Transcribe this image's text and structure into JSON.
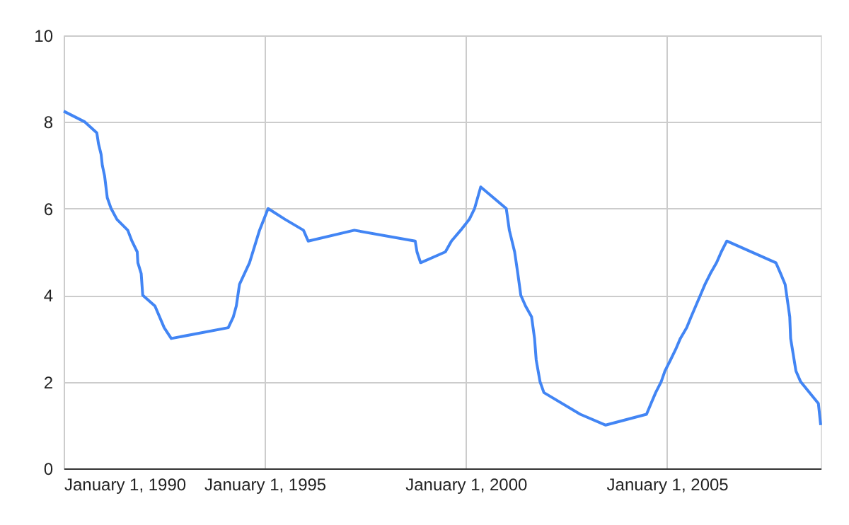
{
  "chart_data": {
    "type": "line",
    "x": [
      "1990-01-01",
      "1990-07-13",
      "1990-10-29",
      "1990-11-13",
      "1990-12-07",
      "1990-12-18",
      "1991-01-08",
      "1991-02-01",
      "1991-03-08",
      "1991-04-30",
      "1991-08-06",
      "1991-09-13",
      "1991-10-31",
      "1991-11-06",
      "1991-12-06",
      "1991-12-20",
      "1992-04-09",
      "1992-07-02",
      "1992-09-04",
      "1994-02-04",
      "1994-03-22",
      "1994-04-18",
      "1994-05-17",
      "1994-08-16",
      "1994-11-15",
      "1995-02-01",
      "1995-07-06",
      "1995-12-19",
      "1996-01-31",
      "1997-03-25",
      "1998-09-29",
      "1998-10-15",
      "1998-11-17",
      "1999-06-30",
      "1999-08-24",
      "1999-11-16",
      "2000-02-02",
      "2000-03-21",
      "2000-05-16",
      "2001-01-03",
      "2001-01-31",
      "2001-03-20",
      "2001-04-18",
      "2001-05-15",
      "2001-06-27",
      "2001-08-21",
      "2001-09-17",
      "2001-10-02",
      "2001-11-06",
      "2001-12-11",
      "2002-11-06",
      "2003-06-25",
      "2004-06-30",
      "2004-08-10",
      "2004-09-21",
      "2004-11-10",
      "2004-12-14",
      "2005-02-02",
      "2005-03-22",
      "2005-05-03",
      "2005-06-30",
      "2005-08-09",
      "2005-09-20",
      "2005-11-01",
      "2005-12-13",
      "2006-01-31",
      "2006-03-28",
      "2006-05-10",
      "2006-06-29",
      "2007-09-18",
      "2007-10-31",
      "2007-12-11",
      "2008-01-22",
      "2008-01-30",
      "2008-03-18",
      "2008-04-30",
      "2008-10-08",
      "2008-10-29"
    ],
    "series": [
      {
        "color": "#4285f4",
        "values": [
          8.25,
          8.0,
          7.75,
          7.5,
          7.25,
          7.0,
          6.75,
          6.25,
          6.0,
          5.75,
          5.5,
          5.25,
          5.0,
          4.75,
          4.5,
          4.0,
          3.75,
          3.25,
          3.0,
          3.25,
          3.5,
          3.75,
          4.25,
          4.75,
          5.5,
          6.0,
          5.75,
          5.5,
          5.25,
          5.5,
          5.25,
          5.0,
          4.75,
          5.0,
          5.25,
          5.5,
          5.75,
          6.0,
          6.5,
          6.0,
          5.5,
          5.0,
          4.5,
          4.0,
          3.75,
          3.5,
          3.0,
          2.5,
          2.0,
          1.75,
          1.25,
          1.0,
          1.25,
          1.5,
          1.75,
          2.0,
          2.25,
          2.5,
          2.75,
          3.0,
          3.25,
          3.5,
          3.75,
          4.0,
          4.25,
          4.5,
          4.75,
          5.0,
          5.25,
          4.75,
          4.5,
          4.25,
          3.5,
          3.0,
          2.25,
          2.0,
          1.5,
          1.0
        ]
      }
    ],
    "xlim": [
      "1990-01-01",
      "2008-10-29"
    ],
    "xticks": [
      {
        "value": "1990-01-01",
        "label": "January 1, 1990"
      },
      {
        "value": "1995-01-01",
        "label": "January 1, 1995"
      },
      {
        "value": "2000-01-01",
        "label": "January 1, 2000"
      },
      {
        "value": "2005-01-01",
        "label": "January 1, 2005"
      }
    ],
    "ylim": [
      0,
      10
    ],
    "yticks": [
      0,
      2,
      4,
      6,
      8,
      10
    ],
    "grid": true,
    "legend": false,
    "marker": "none",
    "line_style": "solid"
  }
}
